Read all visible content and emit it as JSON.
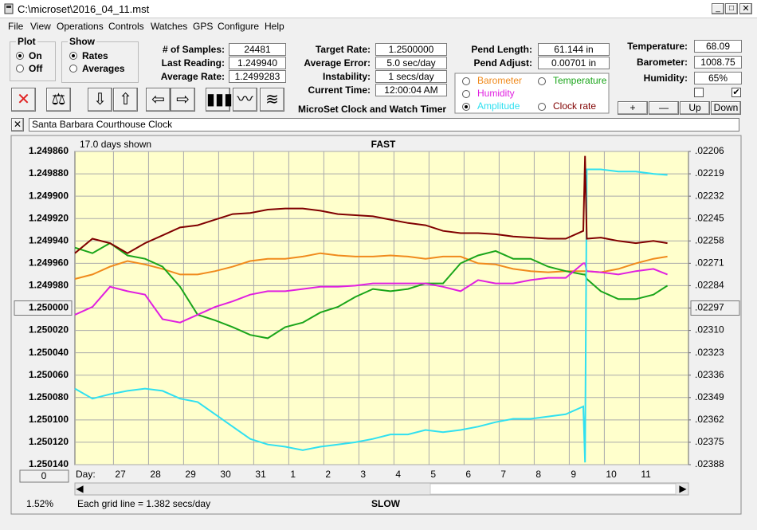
{
  "window": {
    "title": "C:\\microset\\2016_04_11.mst"
  },
  "menu": [
    "File",
    "View",
    "Operations",
    "Controls",
    "Watches",
    "GPS",
    "Configure",
    "Help"
  ],
  "plot_group": {
    "title": "Plot",
    "options": [
      "On",
      "Off"
    ],
    "selected": 0
  },
  "show_group": {
    "title": "Show",
    "options": [
      "Rates",
      "Averages"
    ],
    "selected": 0
  },
  "fields": [
    {
      "label": "# of Samples:",
      "value": "24481"
    },
    {
      "label": "Last Reading:",
      "value": "1.249940"
    },
    {
      "label": "Average Rate:",
      "value": "1.2499283"
    },
    {
      "label": "Target Rate:",
      "value": "1.2500000"
    },
    {
      "label": "Average Error:",
      "value": "5.0 sec/day"
    },
    {
      "label": "Instability:",
      "value": "1 secs/day"
    },
    {
      "label": "Current Time:",
      "value": "12:00:04 AM"
    },
    {
      "label": "Pend Length:",
      "value": "61.144 in"
    },
    {
      "label": "Pend Adjust:",
      "value": "0.00701 in"
    },
    {
      "label": "Temperature:",
      "value": "68.09"
    },
    {
      "label": "Barometer:",
      "value": "1008.75"
    },
    {
      "label": "Humidity:",
      "value": "65%"
    }
  ],
  "checkboxes": [
    false,
    true
  ],
  "app_name": "MicroSet Clock and Watch Timer",
  "buttons": [
    "+",
    "—",
    "Up",
    "Down"
  ],
  "note": "Santa Barbara Courthouse Clock",
  "chart_data": {
    "type": "line",
    "days_shown": "17.0 days shown",
    "top_label": "FAST",
    "bottom_label": "SLOW",
    "x_label": "Day:",
    "grid_note": "Each grid line = 1.382 secs/day",
    "percent": "1.52%",
    "scroll_value": "0",
    "highlighted_series": 3,
    "x": [
      0,
      0.5,
      1,
      1.5,
      2,
      2.5,
      3,
      3.5,
      4,
      4.5,
      5,
      5.5,
      6,
      6.5,
      7,
      7.5,
      8,
      8.5,
      9,
      9.5,
      10,
      10.5,
      11,
      11.5,
      12,
      12.5,
      13,
      13.5,
      14,
      14.5,
      14.55,
      14.6,
      15,
      15.5,
      16,
      16.5,
      16.9
    ],
    "xlim": [
      0,
      17.5
    ],
    "xticks": [
      {
        "value": 1.1,
        "label": "27"
      },
      {
        "value": 2.1,
        "label": "28"
      },
      {
        "value": 3.1,
        "label": "29"
      },
      {
        "value": 4.1,
        "label": "30"
      },
      {
        "value": 5.1,
        "label": "31"
      },
      {
        "value": 6.1,
        "label": "1"
      },
      {
        "value": 7.1,
        "label": "2"
      },
      {
        "value": 8.1,
        "label": "3"
      },
      {
        "value": 9.1,
        "label": "4"
      },
      {
        "value": 10.1,
        "label": "5"
      },
      {
        "value": 11.1,
        "label": "6"
      },
      {
        "value": 12.1,
        "label": "7"
      },
      {
        "value": 13.1,
        "label": "8"
      },
      {
        "value": 14.1,
        "label": "9"
      },
      {
        "value": 15.1,
        "label": "10"
      },
      {
        "value": 16.1,
        "label": "11"
      }
    ],
    "ylim": [
      1.24986,
      1.25014
    ],
    "yreverse": true,
    "yticks": [
      {
        "value": 1.24986,
        "label": "1.249860"
      },
      {
        "value": 1.24988,
        "label": "1.249880"
      },
      {
        "value": 1.2499,
        "label": "1.249900"
      },
      {
        "value": 1.24992,
        "label": "1.249920"
      },
      {
        "value": 1.24994,
        "label": "1.249940"
      },
      {
        "value": 1.24996,
        "label": "1.249960"
      },
      {
        "value": 1.24998,
        "label": "1.249980"
      },
      {
        "value": 1.25,
        "label": "1.250000"
      },
      {
        "value": 1.25002,
        "label": "1.250020"
      },
      {
        "value": 1.25004,
        "label": "1.250040"
      },
      {
        "value": 1.25006,
        "label": "1.250060"
      },
      {
        "value": 1.25008,
        "label": "1.250080"
      },
      {
        "value": 1.2501,
        "label": "1.250100"
      },
      {
        "value": 1.25012,
        "label": "1.250120"
      },
      {
        "value": 1.25014,
        "label": "1.250140"
      }
    ],
    "y2lim": [
      0.02206,
      0.02388
    ],
    "y2ticks": [
      {
        "value": 0.02206,
        "label": ".02206"
      },
      {
        "value": 0.02219,
        "label": ".02219"
      },
      {
        "value": 0.02232,
        "label": ".02232"
      },
      {
        "value": 0.02245,
        "label": ".02245"
      },
      {
        "value": 0.02258,
        "label": ".02258"
      },
      {
        "value": 0.02271,
        "label": ".02271"
      },
      {
        "value": 0.02284,
        "label": ".02284"
      },
      {
        "value": 0.02297,
        "label": ".02297"
      },
      {
        "value": 0.0231,
        "label": ".02310"
      },
      {
        "value": 0.02323,
        "label": ".02323"
      },
      {
        "value": 0.02336,
        "label": ".02336"
      },
      {
        "value": 0.02349,
        "label": ".02349"
      },
      {
        "value": 0.02362,
        "label": ".02362"
      },
      {
        "value": 0.02375,
        "label": ".02375"
      },
      {
        "value": 0.02388,
        "label": ".02388"
      }
    ],
    "grid": true,
    "series": [
      {
        "name": "Barometer",
        "color": "#f08a1c",
        "values": [
          1.249974,
          1.24997,
          1.249963,
          1.249958,
          1.249961,
          1.249965,
          1.24997,
          1.24997,
          1.249967,
          1.249963,
          1.249958,
          1.249956,
          1.249956,
          1.249954,
          1.249951,
          1.249953,
          1.249954,
          1.249954,
          1.249953,
          1.249954,
          1.249956,
          1.249954,
          1.249954,
          1.24996,
          1.249961,
          1.249965,
          1.249967,
          1.249968,
          1.249967,
          1.249967,
          1.249967,
          1.249967,
          1.249968,
          1.249965,
          1.24996,
          1.249956,
          1.249954
        ]
      },
      {
        "name": "Temperature",
        "color": "#1aa51a",
        "values": [
          1.249946,
          1.249951,
          1.249942,
          1.249953,
          1.249956,
          1.249963,
          1.249981,
          1.250006,
          1.250011,
          1.250017,
          1.250024,
          1.250027,
          1.250017,
          1.250013,
          1.250004,
          1.249999,
          1.24999,
          1.249983,
          1.249985,
          1.249983,
          1.249978,
          1.249978,
          1.24996,
          1.249953,
          1.249949,
          1.249956,
          1.249956,
          1.249963,
          1.249967,
          1.24997,
          1.24997,
          1.249974,
          1.249985,
          1.249992,
          1.249992,
          1.249988,
          1.24998
        ]
      },
      {
        "name": "Humidity",
        "color": "#e020e0",
        "values": [
          1.250006,
          1.249999,
          1.249981,
          1.249985,
          1.249988,
          1.25001,
          1.250013,
          1.250006,
          1.249999,
          1.249994,
          1.249988,
          1.249985,
          1.249985,
          1.249983,
          1.249981,
          1.249981,
          1.24998,
          1.249978,
          1.249978,
          1.249978,
          1.249978,
          1.249981,
          1.249985,
          1.249975,
          1.249978,
          1.249978,
          1.249975,
          1.249973,
          1.249973,
          1.24996,
          1.24996,
          1.249967,
          1.249968,
          1.24997,
          1.249967,
          1.249965,
          1.24997
        ]
      },
      {
        "name": "Amplitude",
        "color": "#30e0f0",
        "values": [
          1.250072,
          1.250081,
          1.250077,
          1.250074,
          1.250072,
          1.250074,
          1.250081,
          1.250084,
          1.250095,
          1.250106,
          1.250117,
          1.250122,
          1.250124,
          1.250127,
          1.250124,
          1.250122,
          1.25012,
          1.250117,
          1.250113,
          1.250113,
          1.250109,
          1.250111,
          1.250109,
          1.250106,
          1.250102,
          1.250099,
          1.250099,
          1.250097,
          1.250095,
          1.250088,
          1.250138,
          1.249876,
          1.249876,
          1.249878,
          1.249878,
          1.24988,
          1.249881
        ]
      },
      {
        "name": "Clock rate",
        "color": "#800000",
        "values": [
          1.249951,
          1.249938,
          1.249942,
          1.249951,
          1.249942,
          1.249935,
          1.249928,
          1.249926,
          1.249921,
          1.249916,
          1.249915,
          1.249912,
          1.249911,
          1.249911,
          1.249913,
          1.249916,
          1.249917,
          1.249918,
          1.249921,
          1.249924,
          1.249926,
          1.249931,
          1.249933,
          1.249933,
          1.249934,
          1.249936,
          1.249937,
          1.249938,
          1.249938,
          1.249931,
          1.249864,
          1.249938,
          1.249937,
          1.24994,
          1.249942,
          1.24994,
          1.249942
        ]
      }
    ]
  }
}
